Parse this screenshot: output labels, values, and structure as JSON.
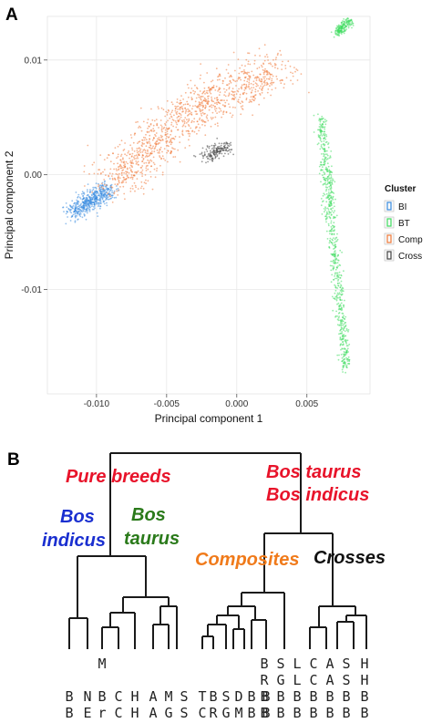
{
  "panels": {
    "a_letter": "A",
    "b_letter": "B"
  },
  "chart_data": [
    {
      "type": "scatter",
      "xlabel": "Principal component 1",
      "ylabel": "Principal component 2",
      "xlim": [
        -0.0135,
        0.0095
      ],
      "ylim": [
        -0.0191,
        0.0138
      ],
      "xticks": [
        -0.01,
        -0.005,
        0.0,
        0.005
      ],
      "xtick_labels": [
        "-0.010",
        "-0.005",
        "0.000",
        "0.005"
      ],
      "yticks": [
        -0.01,
        0.0,
        0.01
      ],
      "ytick_labels": [
        "-0.01",
        "0.00",
        "0.01"
      ],
      "grid": true,
      "legend": {
        "title": "Cluster",
        "placement": "right"
      },
      "series": [
        {
          "name": "BI",
          "color": "#3a8de0",
          "clouds": [
            {
              "from": [
                -0.0117,
                -0.0033
              ],
              "to": [
                -0.0092,
                -0.0013
              ],
              "spread": 0.0004,
              "n": 520
            }
          ]
        },
        {
          "name": "BT",
          "color": "#3fdd60",
          "clouds": [
            {
              "from": [
                0.0071,
                0.0123
              ],
              "to": [
                0.008,
                0.0134
              ],
              "spread": 0.00018,
              "n": 180
            },
            {
              "from": [
                0.006,
                0.005
              ],
              "to": [
                0.0078,
                -0.017
              ],
              "spread": 0.0002,
              "n": 700
            }
          ]
        },
        {
          "name": "Comp",
          "color": "#f07a3a",
          "clouds": [
            {
              "from": [
                -0.009,
                -0.001
              ],
              "to": [
                -0.003,
                0.006
              ],
              "spread": 0.0009,
              "n": 650
            },
            {
              "from": [
                -0.003,
                0.006
              ],
              "to": [
                0.003,
                0.0092
              ],
              "spread": 0.0009,
              "n": 500
            }
          ]
        },
        {
          "name": "Cross",
          "color": "#444444",
          "clouds": [
            {
              "from": [
                -0.0022,
                0.0015
              ],
              "to": [
                -0.0008,
                0.0025
              ],
              "spread": 0.0003,
              "n": 160
            }
          ]
        }
      ]
    },
    {
      "type": "dendrogram",
      "group_labels": [
        {
          "text": "Pure breeds",
          "color": "#e8132a"
        },
        {
          "text": "Bos",
          "color": "#1a2fd0"
        },
        {
          "text": "indicus",
          "color": "#1a2fd0"
        },
        {
          "text": "Bos",
          "color": "#2a7a1a"
        },
        {
          "text": "taurus",
          "color": "#2a7a1a"
        },
        {
          "text": "Bos taurus",
          "color": "#e8132a"
        },
        {
          "text": "Bos indicus",
          "color": "#e8132a"
        },
        {
          "text": "Composites",
          "color": "#f07a1a"
        },
        {
          "text": "Crosses",
          "color": "#111111"
        }
      ],
      "leaf_rows": [
        [
          "",
          "",
          "M",
          "",
          "",
          "",
          "",
          "",
          "",
          "",
          "",
          "",
          "",
          "",
          "B",
          "S",
          "L",
          "C",
          "A",
          "S",
          "H"
        ],
        [
          "",
          "",
          "",
          "",
          "",
          "",
          "",
          "",
          "",
          "",
          "",
          "",
          "",
          "",
          "R",
          "G",
          "L",
          "C",
          "A",
          "S",
          "H"
        ],
        [
          "B",
          "N",
          "B",
          "C",
          "H",
          "A",
          "M",
          "S",
          "T",
          "B",
          "S",
          "D",
          "B",
          "B",
          "B",
          "B",
          "B",
          "B",
          "B",
          "B",
          "B"
        ],
        [
          "B",
          "E",
          "r",
          "C",
          "H",
          "A",
          "G",
          "S",
          "C",
          "R",
          "G",
          "M",
          "B",
          "B",
          "B",
          "B",
          "B",
          "B",
          "B",
          "B",
          "B"
        ]
      ]
    }
  ]
}
